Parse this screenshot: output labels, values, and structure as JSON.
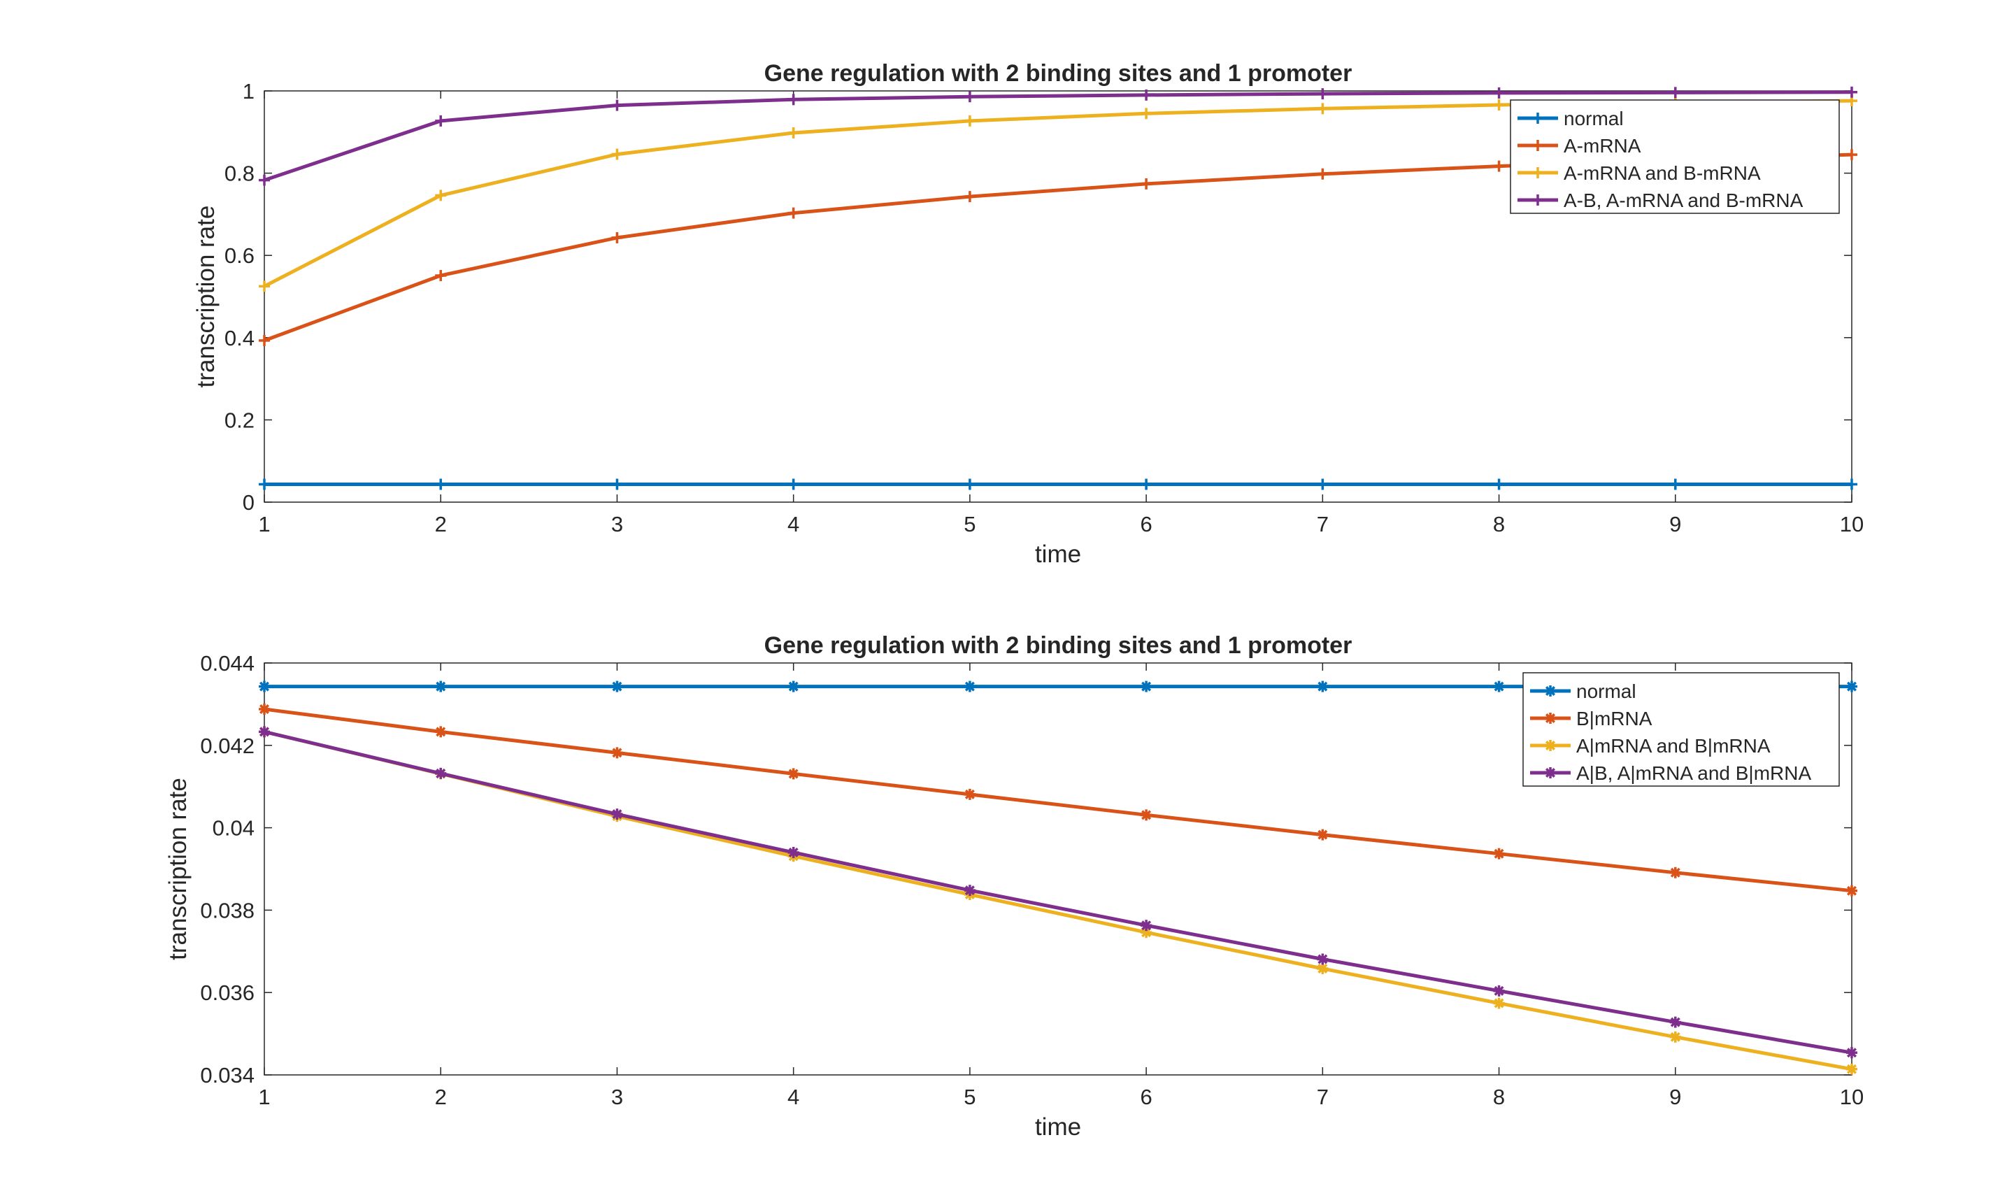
{
  "chart_data": [
    {
      "type": "line",
      "title": "Gene regulation with 2 binding sites and 1 promoter",
      "xlabel": "time",
      "ylabel": "transcription rate",
      "xlim": [
        1,
        10
      ],
      "ylim": [
        0,
        1
      ],
      "xticks": [
        "1",
        "2",
        "3",
        "4",
        "5",
        "6",
        "7",
        "8",
        "9",
        "10"
      ],
      "yticks": [
        "0",
        "0.2",
        "0.4",
        "0.6",
        "0.8",
        "1"
      ],
      "legend_position": "top-right",
      "grid": false,
      "x": [
        1,
        2,
        3,
        4,
        5,
        6,
        7,
        8,
        9,
        10
      ],
      "series": [
        {
          "name": "normal",
          "color": "#0072BD",
          "marker": "plus",
          "values": [
            0.0434,
            0.0434,
            0.0434,
            0.0434,
            0.0434,
            0.0434,
            0.0434,
            0.0434,
            0.0434,
            0.0434
          ]
        },
        {
          "name": "A-mRNA",
          "color": "#D95319",
          "marker": "plus",
          "values": [
            0.393,
            0.551,
            0.643,
            0.703,
            0.743,
            0.774,
            0.798,
            0.817,
            0.832,
            0.845
          ]
        },
        {
          "name": "A-mRNA and B-mRNA",
          "color": "#EDB120",
          "marker": "plus",
          "values": [
            0.525,
            0.746,
            0.846,
            0.898,
            0.927,
            0.945,
            0.957,
            0.966,
            0.972,
            0.976
          ]
        },
        {
          "name": "A-B, A-mRNA and B-mRNA",
          "color": "#7E2F8E",
          "marker": "plus",
          "values": [
            0.783,
            0.927,
            0.965,
            0.979,
            0.986,
            0.99,
            0.993,
            0.995,
            0.996,
            0.997
          ]
        }
      ]
    },
    {
      "type": "line",
      "title": "Gene regulation with 2 binding sites and 1 promoter",
      "xlabel": "time",
      "ylabel": "transcription rate",
      "xlim": [
        1,
        10
      ],
      "ylim": [
        0.034,
        0.044
      ],
      "xticks": [
        "1",
        "2",
        "3",
        "4",
        "5",
        "6",
        "7",
        "8",
        "9",
        "10"
      ],
      "yticks": [
        "0.034",
        "0.036",
        "0.038",
        "0.04",
        "0.042",
        "0.044"
      ],
      "legend_position": "top-right",
      "grid": false,
      "x": [
        1,
        2,
        3,
        4,
        5,
        6,
        7,
        8,
        9,
        10
      ],
      "series": [
        {
          "name": "normal",
          "color": "#0072BD",
          "marker": "asterisk",
          "values": [
            0.04343,
            0.04343,
            0.04343,
            0.04343,
            0.04343,
            0.04343,
            0.04343,
            0.04343,
            0.04343,
            0.04343
          ]
        },
        {
          "name": "B|mRNA",
          "color": "#D95319",
          "marker": "asterisk",
          "values": [
            0.04288,
            0.04233,
            0.04182,
            0.04131,
            0.04081,
            0.04031,
            0.03983,
            0.03937,
            0.03891,
            0.03847
          ]
        },
        {
          "name": "A|mRNA and B|mRNA",
          "color": "#EDB120",
          "marker": "asterisk",
          "values": [
            0.04233,
            0.04131,
            0.04028,
            0.03931,
            0.03838,
            0.03746,
            0.03658,
            0.03574,
            0.03492,
            0.03414
          ]
        },
        {
          "name": "A|B, A|mRNA and B|mRNA",
          "color": "#7E2F8E",
          "marker": "asterisk",
          "values": [
            0.04233,
            0.04132,
            0.04033,
            0.0394,
            0.03848,
            0.03763,
            0.03681,
            0.03604,
            0.03528,
            0.03454
          ]
        }
      ]
    }
  ]
}
